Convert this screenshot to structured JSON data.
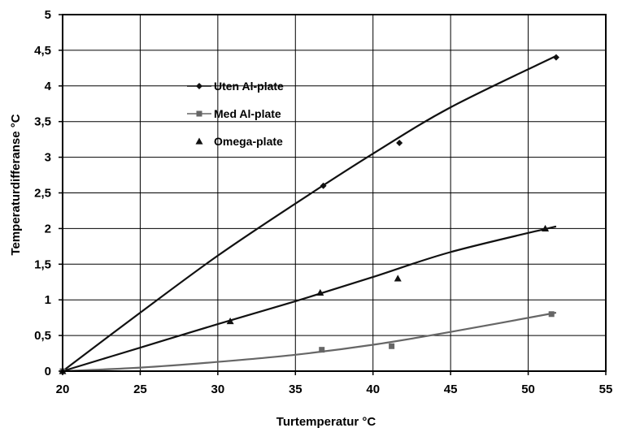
{
  "chart_data": {
    "type": "scatter",
    "title": "",
    "xlabel": "Turtemperatur °C",
    "ylabel": "Temperaturdifferanse °C",
    "xlim": [
      20,
      55
    ],
    "ylim": [
      0,
      5
    ],
    "x_ticks": [
      20,
      25,
      30,
      35,
      40,
      45,
      50,
      55
    ],
    "y_ticks": [
      0,
      0.5,
      1,
      1.5,
      2,
      2.5,
      3,
      3.5,
      4,
      4.5,
      5
    ],
    "x_tick_labels": [
      "20",
      "25",
      "30",
      "35",
      "40",
      "45",
      "50",
      "55"
    ],
    "y_tick_labels": [
      "0",
      "0,5",
      "1",
      "1,5",
      "2",
      "2,5",
      "3",
      "3,5",
      "4",
      "4,5",
      "5"
    ],
    "grid": true,
    "legend_position": "upper-left-inside",
    "series": [
      {
        "name": "Uten Al-plate",
        "marker": "diamond",
        "color": "#111111",
        "points": [
          [
            20,
            0
          ],
          [
            36.8,
            2.6
          ],
          [
            41.7,
            3.2
          ],
          [
            51.8,
            4.4
          ]
        ],
        "trend": [
          [
            20,
            0
          ],
          [
            25,
            0.82
          ],
          [
            30,
            1.62
          ],
          [
            35,
            2.35
          ],
          [
            40,
            3.05
          ],
          [
            45,
            3.7
          ],
          [
            51.8,
            4.42
          ]
        ]
      },
      {
        "name": "Med Al-plate",
        "marker": "square",
        "color": "#666666",
        "points": [
          [
            20,
            0
          ],
          [
            36.7,
            0.3
          ],
          [
            41.2,
            0.35
          ],
          [
            51.5,
            0.8
          ]
        ],
        "trend": [
          [
            20,
            0
          ],
          [
            25,
            0.05
          ],
          [
            30,
            0.13
          ],
          [
            35,
            0.23
          ],
          [
            40,
            0.37
          ],
          [
            45,
            0.55
          ],
          [
            51.8,
            0.82
          ]
        ]
      },
      {
        "name": "Omega-plate",
        "marker": "triangle",
        "color": "#111111",
        "points": [
          [
            20,
            0
          ],
          [
            30.8,
            0.7
          ],
          [
            36.6,
            1.1
          ],
          [
            41.6,
            1.3
          ],
          [
            51.1,
            2.0
          ]
        ],
        "trend": [
          [
            20,
            0
          ],
          [
            25,
            0.33
          ],
          [
            30,
            0.66
          ],
          [
            35,
            0.98
          ],
          [
            40,
            1.32
          ],
          [
            45,
            1.67
          ],
          [
            51.8,
            2.03
          ]
        ]
      }
    ]
  }
}
